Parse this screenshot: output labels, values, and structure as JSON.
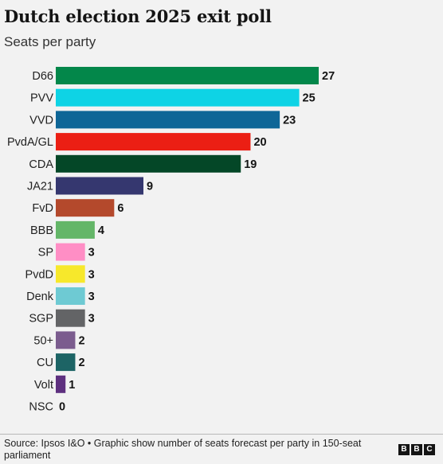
{
  "title": "Dutch election 2025 exit poll",
  "subtitle": "Seats per party",
  "source": "Source: Ipsos I&O • Graphic show number of seats forecast per party in 150-seat parliament",
  "logo_letters": [
    "B",
    "B",
    "C"
  ],
  "chart_data": {
    "type": "bar",
    "orientation": "horizontal",
    "categories": [
      "D66",
      "PVV",
      "VVD",
      "PvdA/GL",
      "CDA",
      "JA21",
      "FvD",
      "BBB",
      "SP",
      "PvdD",
      "Denk",
      "SGP",
      "50+",
      "CU",
      "Volt",
      "NSC"
    ],
    "values": [
      27,
      25,
      23,
      20,
      19,
      9,
      6,
      4,
      3,
      3,
      3,
      3,
      2,
      2,
      1,
      0
    ],
    "colors": [
      "#03874a",
      "#0ed3e5",
      "#0e6697",
      "#eb1f14",
      "#044727",
      "#35376f",
      "#b4492c",
      "#64b668",
      "#ff8ec5",
      "#f7e82b",
      "#6ecad3",
      "#636466",
      "#7b5c8e",
      "#1d6465",
      "#5e307f",
      "#cccccc"
    ],
    "data_labels": true,
    "xlim": [
      0,
      27
    ]
  }
}
